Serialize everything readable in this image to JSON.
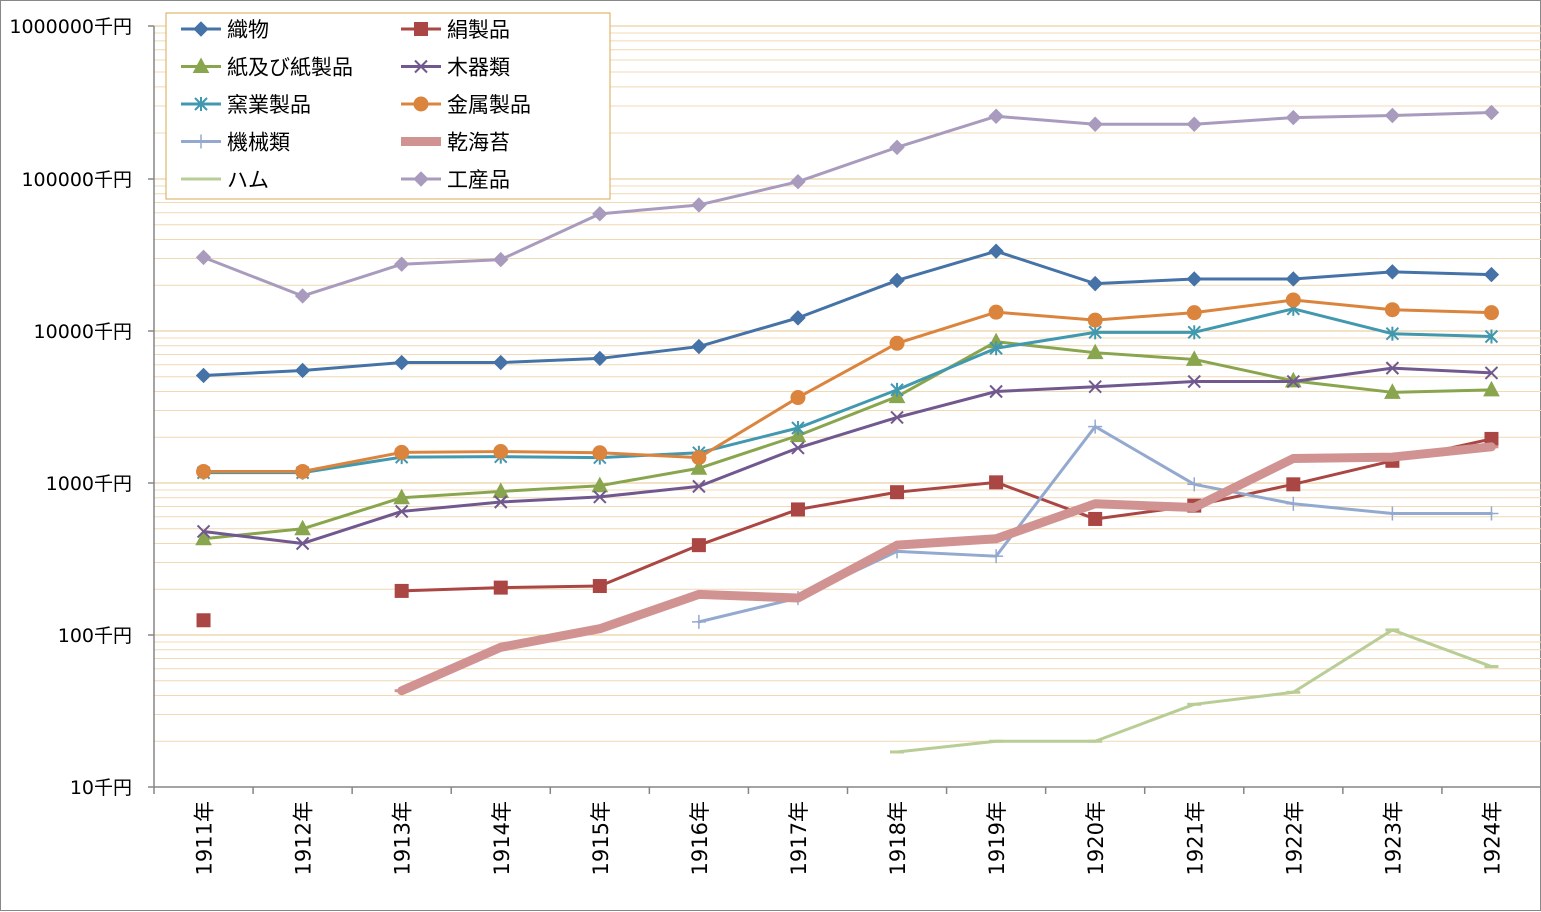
{
  "chart_data": {
    "type": "line",
    "title": "",
    "xlabel": "",
    "ylabel": "",
    "y_scale": "log",
    "ylim": [
      10,
      1000000
    ],
    "y_ticks": [
      "10千円",
      "100千円",
      "1000千円",
      "10000千円",
      "100000千円",
      "1000000千円"
    ],
    "categories": [
      "1911年",
      "1912年",
      "1913年",
      "1914年",
      "1915年",
      "1916年",
      "1917年",
      "1918年",
      "1919年",
      "1920年",
      "1921年",
      "1922年",
      "1923年",
      "1924年"
    ],
    "grid": "horizontal major and minor",
    "legend_position": "top-left",
    "series": [
      {
        "name": "織物",
        "color": "#4572A7",
        "marker": "diamond",
        "width": 3,
        "values": [
          5100,
          5500,
          6200,
          6200,
          6600,
          7900,
          12200,
          21500,
          33500,
          20500,
          22000,
          22000,
          24500,
          23500
        ]
      },
      {
        "name": "絹製品",
        "color": "#AA4643",
        "marker": "square",
        "width": 3,
        "values": [
          125,
          null,
          195,
          205,
          210,
          390,
          670,
          870,
          1010,
          580,
          710,
          980,
          1400,
          1950
        ]
      },
      {
        "name": "紙及び紙製品",
        "color": "#89A54E",
        "marker": "triangle",
        "width": 3,
        "values": [
          430,
          500,
          800,
          880,
          960,
          1250,
          2050,
          3700,
          8500,
          7200,
          6500,
          4700,
          3950,
          4100
        ]
      },
      {
        "name": "木器類",
        "color": "#71588F",
        "marker": "x",
        "width": 3,
        "values": [
          480,
          400,
          650,
          750,
          810,
          950,
          1700,
          2700,
          4000,
          4300,
          4650,
          4650,
          5700,
          5300
        ]
      },
      {
        "name": "窯業製品",
        "color": "#4198AF",
        "marker": "star",
        "width": 3,
        "values": [
          1170,
          1170,
          1480,
          1490,
          1470,
          1580,
          2300,
          4100,
          7700,
          9800,
          9800,
          14000,
          9600,
          9200
        ]
      },
      {
        "name": "金属製品",
        "color": "#DB843D",
        "marker": "circle",
        "width": 3,
        "values": [
          1190,
          1190,
          1590,
          1610,
          1580,
          1470,
          3650,
          8300,
          13300,
          11800,
          13200,
          16000,
          13800,
          13200
        ]
      },
      {
        "name": "機械類",
        "color": "#93A9CF",
        "marker": "plus",
        "width": 3,
        "values": [
          null,
          null,
          null,
          null,
          null,
          122,
          175,
          355,
          330,
          2350,
          980,
          730,
          630,
          630
        ]
      },
      {
        "name": "乾海苔",
        "color": "#D19392",
        "marker": "dash",
        "width": 9,
        "values": [
          null,
          null,
          43,
          83,
          110,
          185,
          175,
          390,
          430,
          730,
          690,
          1450,
          1480,
          1730
        ]
      },
      {
        "name": "ハム",
        "color": "#B9CD96",
        "marker": "dash",
        "width": 3,
        "values": [
          null,
          null,
          null,
          null,
          null,
          null,
          null,
          17,
          20,
          20,
          35,
          42,
          108,
          62
        ]
      },
      {
        "name": "工産品",
        "color": "#A99BBD",
        "marker": "diamond",
        "width": 3,
        "values": [
          30500,
          17000,
          27500,
          29500,
          59000,
          67500,
          96000,
          161000,
          257000,
          228000,
          228000,
          252000,
          260000,
          272000
        ]
      }
    ]
  }
}
